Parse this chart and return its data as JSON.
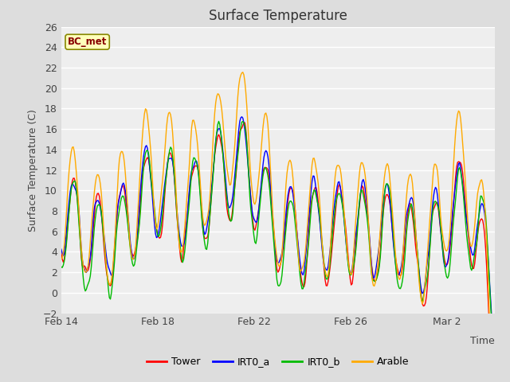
{
  "title": "Surface Temperature",
  "xlabel": "Time",
  "ylabel": "Surface Temperature (C)",
  "ylim": [
    -2,
    26
  ],
  "yticks": [
    -2,
    0,
    2,
    4,
    6,
    8,
    10,
    12,
    14,
    16,
    18,
    20,
    22,
    24,
    26
  ],
  "bg_color": "#dddddd",
  "plot_bg_color": "#eeeeee",
  "annotation": "BC_met",
  "annotation_bg": "#ffffbb",
  "annotation_border": "#888800",
  "annotation_text_color": "#880000",
  "series_colors": {
    "Tower": "#ff0000",
    "IRT0_a": "#0000ff",
    "IRT0_b": "#00bb00",
    "Arable": "#ffaa00"
  },
  "legend_labels": [
    "Tower",
    "IRT0_a",
    "IRT0_b",
    "Arable"
  ],
  "grid_color": "#ffffff",
  "line_width": 1.0,
  "xtick_positions": [
    0,
    96,
    192,
    288,
    384
  ],
  "xtick_labels": [
    "Feb 14",
    "Feb 18",
    "Feb 22",
    "Feb 26",
    "Mar 2"
  ]
}
